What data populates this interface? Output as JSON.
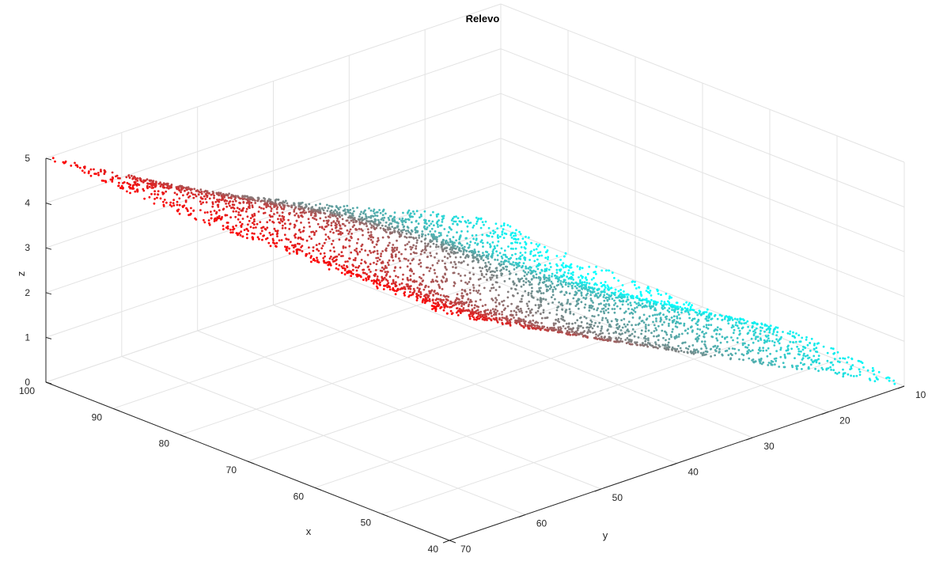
{
  "chart_data": {
    "type": "scatter",
    "title": "Relevo",
    "xlabel": "x",
    "ylabel": "y",
    "zlabel": "z",
    "xlim": [
      40,
      100
    ],
    "ylim": [
      10,
      70
    ],
    "zlim": [
      0,
      5
    ],
    "x_ticks": [
      "40",
      "50",
      "60",
      "70",
      "80",
      "90",
      "100"
    ],
    "y_ticks": [
      "10",
      "20",
      "30",
      "40",
      "50",
      "60",
      "70"
    ],
    "z_ticks": [
      "0",
      "1",
      "2",
      "3",
      "4",
      "5"
    ],
    "grid": true,
    "colormap": {
      "low": "#00ffff",
      "high": "#ff0000"
    },
    "surface_corners": [
      {
        "x": 100,
        "y": 70,
        "z": 5
      },
      {
        "x": 40,
        "y": 70,
        "z": 5
      },
      {
        "x": 40,
        "y": 10,
        "z": 0
      },
      {
        "x": 100,
        "y": 10,
        "z": 0
      }
    ],
    "note": "dense scatter of points sampled over a tilted relief surface; colour follows z"
  },
  "colors": {
    "grid": "#e3e3e3",
    "axis": "#262626",
    "background": "#ffffff"
  }
}
